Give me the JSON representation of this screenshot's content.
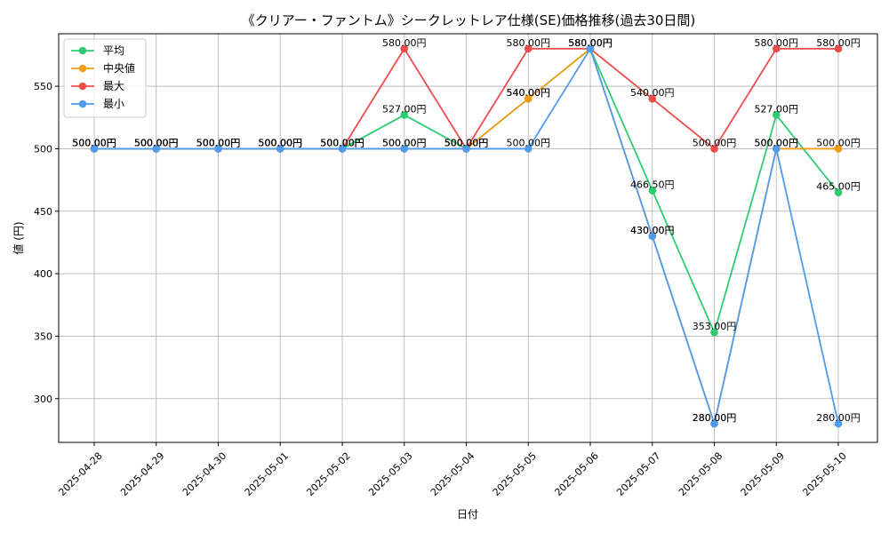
{
  "chart_data": {
    "type": "line",
    "title": "《クリアー・ファントム》シークレットレア仕様(SE)価格推移(過去30日間)",
    "xlabel": "日付",
    "ylabel": "値 (円)",
    "ylim": [
      265,
      592
    ],
    "yticks": [
      300,
      350,
      400,
      450,
      500,
      550
    ],
    "grid": true,
    "legend_position": "top-left",
    "value_suffix": "円",
    "x": [
      "2025-04-28",
      "2025-04-29",
      "2025-04-30",
      "2025-05-01",
      "2025-05-02",
      "2025-05-03",
      "2025-05-04",
      "2025-05-05",
      "2025-05-06",
      "2025-05-07",
      "2025-05-08",
      "2025-05-09",
      "2025-05-10"
    ],
    "series": [
      {
        "name": "平均",
        "color": "#2ecc71",
        "values": [
          500,
          500,
          500,
          500,
          500,
          527,
          500,
          540,
          580,
          466.5,
          353,
          527,
          465
        ]
      },
      {
        "name": "中央値",
        "color": "#f39c12",
        "values": [
          500,
          500,
          500,
          500,
          500,
          500,
          500,
          540,
          580,
          430,
          280,
          500,
          500
        ]
      },
      {
        "name": "最大",
        "color": "#ef4b4b",
        "values": [
          500,
          500,
          500,
          500,
          500,
          580,
          500,
          580,
          580,
          540,
          500,
          580,
          580
        ]
      },
      {
        "name": "最小",
        "color": "#4f9bed",
        "values": [
          500,
          500,
          500,
          500,
          500,
          500,
          500,
          500,
          580,
          430,
          280,
          500,
          280
        ]
      }
    ]
  }
}
